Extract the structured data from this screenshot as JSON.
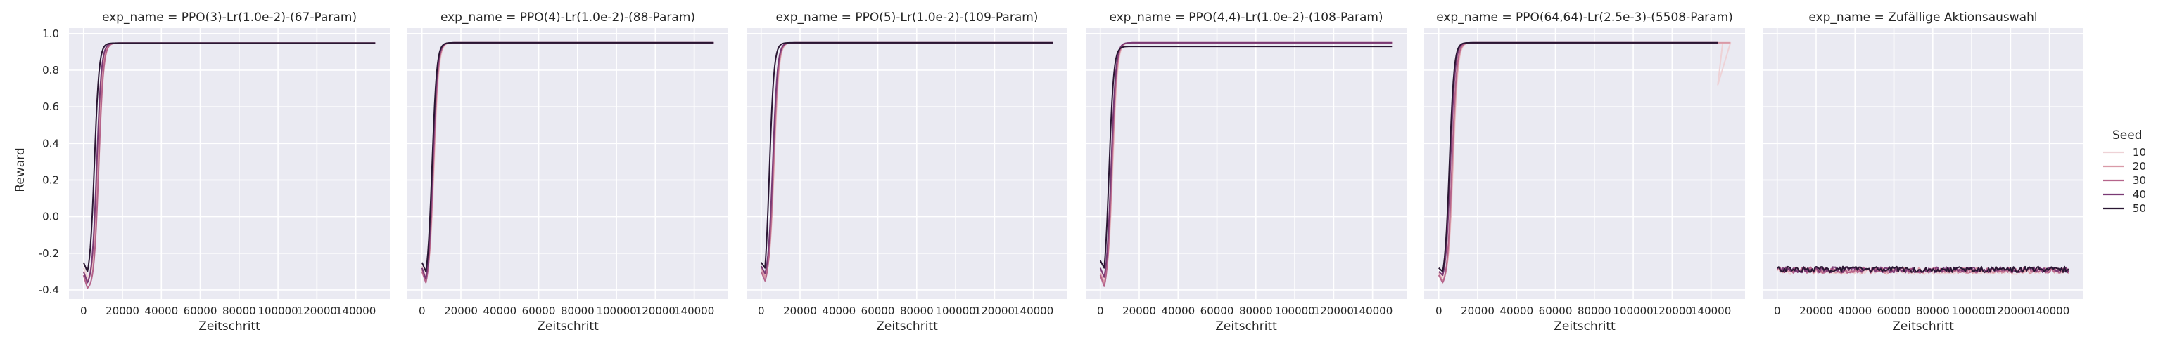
{
  "chart_data": {
    "type": "line",
    "facet_var": "exp_name",
    "xlabel": "Zeitschritt",
    "ylabel": "Reward",
    "ylim": [
      -0.45,
      1.03
    ],
    "xlim": [
      -7500,
      157500
    ],
    "yticks": [
      -0.4,
      -0.2,
      0.0,
      0.2,
      0.4,
      0.6,
      0.8,
      1.0
    ],
    "xticks": [
      0,
      20000,
      40000,
      60000,
      80000,
      100000,
      120000,
      140000
    ],
    "grid": true,
    "legend": {
      "title": "Seed",
      "placement": "right",
      "entries": [
        "10",
        "20",
        "30",
        "40",
        "50"
      ]
    },
    "series_colors": {
      "10": "#eed2d6",
      "20": "#d99aa7",
      "30": "#b5648b",
      "40": "#7a3a74",
      "50": "#2a1733"
    },
    "panels": [
      {
        "title": "exp_name = PPO(3)-Lr(1.0e-2)-(67-Param)",
        "series": [
          {
            "name": "10",
            "start": -0.28,
            "min": -0.33,
            "mid_x": 8000,
            "plateau": 0.948,
            "end_x": 150000
          },
          {
            "name": "20",
            "start": -0.3,
            "min": -0.35,
            "mid_x": 7200,
            "plateau": 0.948,
            "end_x": 150000
          },
          {
            "name": "30",
            "start": -0.32,
            "min": -0.39,
            "mid_x": 7800,
            "plateau": 0.948,
            "end_x": 150000
          },
          {
            "name": "40",
            "start": -0.3,
            "min": -0.36,
            "mid_x": 6800,
            "plateau": 0.948,
            "end_x": 150000
          },
          {
            "name": "50",
            "start": -0.25,
            "min": -0.3,
            "mid_x": 5600,
            "plateau": 0.948,
            "end_x": 150000
          }
        ]
      },
      {
        "title": "exp_name = PPO(4)-Lr(1.0e-2)-(88-Param)",
        "series": [
          {
            "name": "10",
            "start": -0.27,
            "min": -0.33,
            "mid_x": 6300,
            "plateau": 0.95,
            "end_x": 150000
          },
          {
            "name": "20",
            "start": -0.29,
            "min": -0.35,
            "mid_x": 6000,
            "plateau": 0.95,
            "end_x": 150000
          },
          {
            "name": "30",
            "start": -0.3,
            "min": -0.36,
            "mid_x": 5800,
            "plateau": 0.95,
            "end_x": 150000
          },
          {
            "name": "40",
            "start": -0.28,
            "min": -0.34,
            "mid_x": 5500,
            "plateau": 0.95,
            "end_x": 150000
          },
          {
            "name": "50",
            "start": -0.25,
            "min": -0.3,
            "mid_x": 5200,
            "plateau": 0.95,
            "end_x": 150000
          }
        ]
      },
      {
        "title": "exp_name = PPO(5)-Lr(1.0e-2)-(109-Param)",
        "series": [
          {
            "name": "10",
            "start": -0.27,
            "min": -0.32,
            "mid_x": 6800,
            "plateau": 0.95,
            "end_x": 150000
          },
          {
            "name": "20",
            "start": -0.28,
            "min": -0.33,
            "mid_x": 6600,
            "plateau": 0.95,
            "end_x": 150000
          },
          {
            "name": "30",
            "start": -0.3,
            "min": -0.35,
            "mid_x": 6300,
            "plateau": 0.95,
            "end_x": 150000
          },
          {
            "name": "40",
            "start": -0.27,
            "min": -0.31,
            "mid_x": 6000,
            "plateau": 0.95,
            "end_x": 150000
          },
          {
            "name": "50",
            "start": -0.25,
            "min": -0.28,
            "mid_x": 4200,
            "plateau": 0.95,
            "end_x": 150000
          }
        ]
      },
      {
        "title": "exp_name = PPO(4,4)-Lr(1.0e-2)-(108-Param)",
        "series": [
          {
            "name": "10",
            "start": -0.29,
            "min": -0.34,
            "mid_x": 6500,
            "plateau": 0.95,
            "end_x": 150000
          },
          {
            "name": "20",
            "start": -0.31,
            "min": -0.36,
            "mid_x": 6200,
            "plateau": 0.95,
            "end_x": 150000
          },
          {
            "name": "30",
            "start": -0.32,
            "min": -0.38,
            "mid_x": 5900,
            "plateau": 0.95,
            "end_x": 150000
          },
          {
            "name": "40",
            "start": -0.28,
            "min": -0.33,
            "mid_x": 5600,
            "plateau": 0.95,
            "end_x": 150000
          },
          {
            "name": "50",
            "start": -0.24,
            "min": -0.28,
            "mid_x": 4500,
            "plateau": 0.93,
            "end_x": 150000
          }
        ]
      },
      {
        "title": "exp_name = PPO(64,64)-Lr(2.5e-3)-(5508-Param)",
        "series": [
          {
            "name": "10",
            "start": -0.3,
            "min": -0.33,
            "mid_x": 7500,
            "plateau": 0.95,
            "end_x": 150000,
            "dip_x": 143500,
            "dip_y": 0.72
          },
          {
            "name": "20",
            "start": -0.31,
            "min": -0.35,
            "mid_x": 7200,
            "plateau": 0.95,
            "end_x": 150000
          },
          {
            "name": "30",
            "start": -0.32,
            "min": -0.36,
            "mid_x": 6800,
            "plateau": 0.95,
            "end_x": 143500
          },
          {
            "name": "40",
            "start": -0.3,
            "min": -0.32,
            "mid_x": 6000,
            "plateau": 0.95,
            "end_x": 143500
          },
          {
            "name": "50",
            "start": -0.28,
            "min": -0.3,
            "mid_x": 5500,
            "plateau": 0.95,
            "end_x": 143500
          }
        ]
      },
      {
        "title": "exp_name = Zufällige Aktionsauswahl",
        "series": [
          {
            "name": "10",
            "random": true,
            "mean": -0.3,
            "noise": 0.016,
            "end_x": 150000
          },
          {
            "name": "20",
            "random": true,
            "mean": -0.295,
            "noise": 0.016,
            "end_x": 150000
          },
          {
            "name": "30",
            "random": true,
            "mean": -0.292,
            "noise": 0.016,
            "end_x": 150000
          },
          {
            "name": "40",
            "random": true,
            "mean": -0.29,
            "noise": 0.016,
            "end_x": 150000
          },
          {
            "name": "50",
            "random": true,
            "mean": -0.288,
            "noise": 0.016,
            "end_x": 150000
          }
        ]
      }
    ]
  }
}
